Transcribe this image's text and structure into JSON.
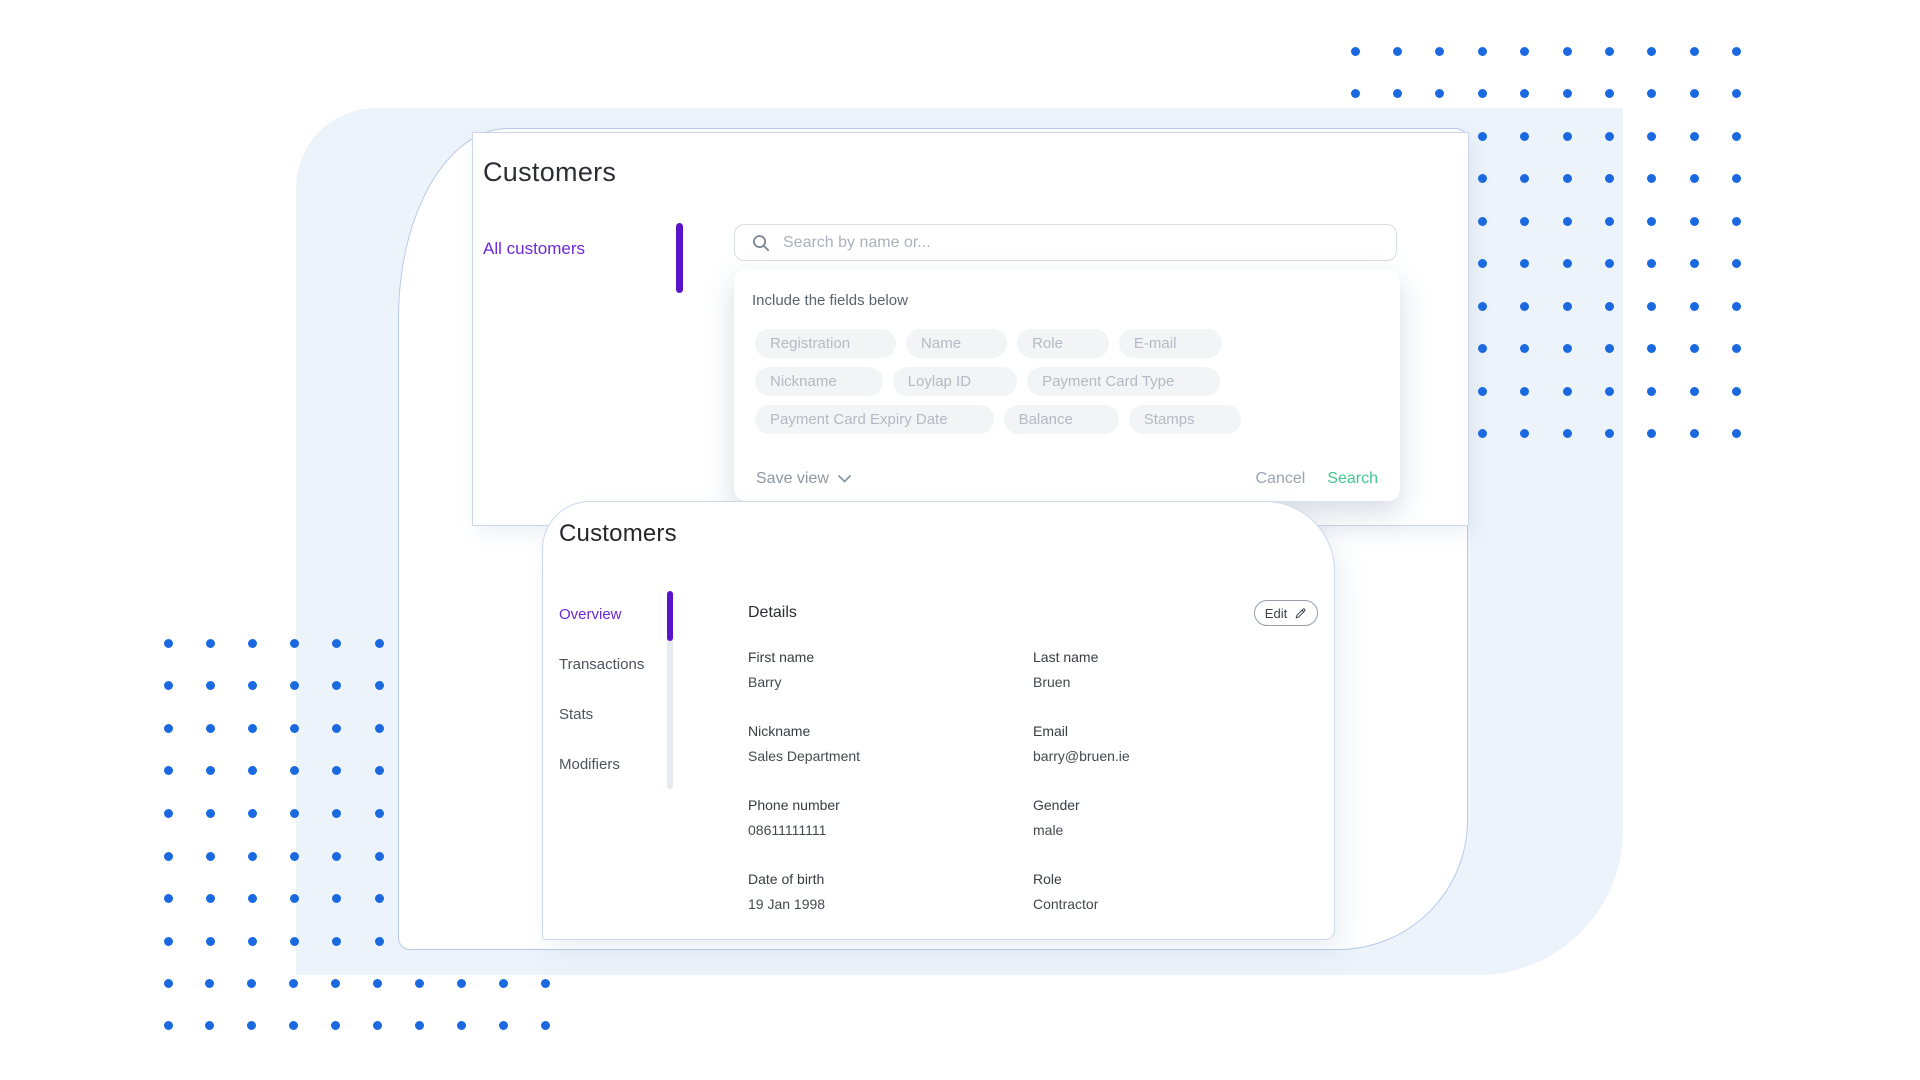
{
  "colors": {
    "accent_purple": "#6d28d9",
    "indicator_purple": "#5a13c8",
    "action_green": "#3ec98c",
    "dot_blue": "#1b69e0",
    "background_blue": "#edf3fa"
  },
  "search_card": {
    "title": "Customers",
    "sidebar_item": "All customers",
    "search_placeholder": "Search by name or...",
    "fields_title": "Include the fields below",
    "field_chips": [
      [
        "Registration",
        "Name",
        "Role",
        "E-mail"
      ],
      [
        "Nickname",
        "Loylap ID",
        "Payment Card Type"
      ],
      [
        "Payment Card Expiry Date",
        "Balance",
        "Stamps"
      ]
    ],
    "save_view_label": "Save view",
    "cancel_label": "Cancel",
    "search_label": "Search"
  },
  "details_card": {
    "title": "Customers",
    "tabs": [
      {
        "label": "Overview",
        "active": true
      },
      {
        "label": "Transactions",
        "active": false
      },
      {
        "label": "Stats",
        "active": false
      },
      {
        "label": "Modifiers",
        "active": false
      }
    ],
    "section_title": "Details",
    "edit_label": "Edit",
    "fields": [
      {
        "label": "First name",
        "value": "Barry"
      },
      {
        "label": "Last name",
        "value": "Bruen"
      },
      {
        "label": "Nickname",
        "value": "Sales Department"
      },
      {
        "label": "Email",
        "value": "barry@bruen.ie"
      },
      {
        "label": "Phone number",
        "value": "08611111111"
      },
      {
        "label": "Gender",
        "value": "male"
      },
      {
        "label": "Date of birth",
        "value": "19 Jan 1998"
      },
      {
        "label": "Role",
        "value": "Contractor"
      }
    ]
  }
}
